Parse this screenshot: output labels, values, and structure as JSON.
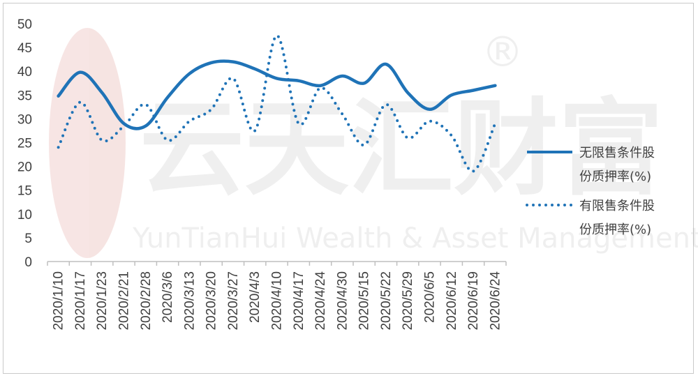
{
  "chart_data": {
    "type": "line",
    "title": "",
    "xlabel": "",
    "ylabel": "",
    "ylim": [
      0,
      50
    ],
    "yticks": [
      0,
      5,
      10,
      15,
      20,
      25,
      30,
      35,
      40,
      45,
      50
    ],
    "grid": false,
    "legend_position": "right",
    "categories": [
      "2020/1/10",
      "2020/1/17",
      "2020/1/23",
      "2020/2/21",
      "2020/2/28",
      "2020/3/6",
      "2020/3/13",
      "2020/3/20",
      "2020/3/27",
      "2020/4/3",
      "2020/4/10",
      "2020/4/17",
      "2020/4/24",
      "2020/4/30",
      "2020/5/15",
      "2020/5/22",
      "2020/5/29",
      "2020/6/5",
      "2020/6/12",
      "2020/6/19",
      "2020/6/24"
    ],
    "series": [
      {
        "name": "无限售条件股份质押率(%)",
        "legend_lines": [
          "无限售条件股",
          "份质押率(%)"
        ],
        "style": "solid",
        "color": "#1f73b7",
        "values": [
          34.8,
          39.8,
          35.5,
          29.0,
          28.5,
          34.5,
          39.5,
          41.8,
          42.0,
          40.5,
          38.5,
          38.0,
          37.0,
          39.0,
          37.5,
          41.5,
          35.5,
          32.0,
          35.0,
          36.0,
          37.0
        ]
      },
      {
        "name": "有限售条件股份质押率(%)",
        "legend_lines": [
          "有限售条件股",
          "份质押率(%)"
        ],
        "style": "dotted",
        "color": "#1f73b7",
        "values": [
          24.0,
          33.5,
          25.5,
          28.5,
          33.0,
          25.5,
          29.5,
          32.0,
          38.5,
          27.5,
          47.5,
          29.0,
          36.5,
          31.0,
          24.5,
          33.0,
          26.0,
          29.5,
          26.5,
          19.0,
          29.0
        ]
      }
    ]
  },
  "watermark": {
    "logo_text": "云天汇财富",
    "registered_mark": "®",
    "subtitle": "YunTianHui Wealth & Asset Management"
  }
}
